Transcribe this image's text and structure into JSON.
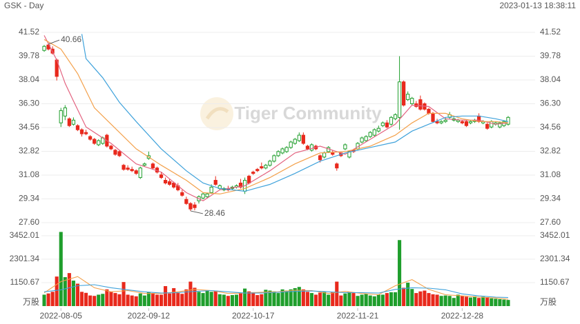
{
  "header": {
    "symbol": "GSK - Day",
    "timestamp": "2023-01-13 18:38:11"
  },
  "watermark": "Tiger Community",
  "chart_data": {
    "type": "candlestick",
    "up_color": "#1f9e2c",
    "down_color": "#e8291c",
    "ohlc": [
      [
        40.2,
        40.6,
        40.1,
        40.5
      ],
      [
        40.6,
        40.66,
        40.2,
        40.3
      ],
      [
        40.3,
        40.5,
        39.9,
        40.0
      ],
      [
        39.5,
        39.6,
        38.0,
        38.3
      ],
      [
        34.9,
        36.0,
        34.6,
        35.8
      ],
      [
        35.4,
        36.2,
        35.1,
        36.0
      ],
      [
        35.2,
        35.3,
        34.6,
        34.7
      ],
      [
        34.8,
        35.3,
        34.7,
        35.1
      ],
      [
        34.7,
        34.8,
        34.3,
        34.4
      ],
      [
        34.4,
        34.5,
        33.9,
        34.1
      ],
      [
        34.2,
        34.4,
        34.0,
        34.1
      ],
      [
        33.9,
        34.0,
        33.6,
        33.7
      ],
      [
        33.7,
        33.8,
        33.3,
        33.4
      ],
      [
        33.3,
        33.7,
        33.2,
        33.6
      ],
      [
        33.4,
        33.9,
        33.3,
        33.8
      ],
      [
        34.0,
        34.1,
        33.1,
        33.2
      ],
      [
        33.2,
        33.3,
        32.9,
        33.0
      ],
      [
        32.9,
        33.0,
        32.5,
        32.6
      ],
      [
        32.8,
        32.9,
        32.4,
        32.5
      ],
      [
        31.8,
        31.9,
        31.4,
        31.5
      ],
      [
        31.6,
        31.8,
        31.4,
        31.5
      ],
      [
        31.5,
        31.7,
        31.3,
        31.4
      ],
      [
        31.4,
        31.5,
        31.1,
        31.2
      ],
      [
        30.9,
        31.7,
        30.8,
        31.6
      ],
      [
        31.8,
        32.0,
        31.7,
        31.9
      ],
      [
        32.3,
        32.8,
        32.2,
        32.5
      ],
      [
        31.9,
        32.0,
        31.5,
        31.6
      ],
      [
        31.6,
        31.7,
        31.2,
        31.3
      ],
      [
        31.1,
        31.3,
        30.8,
        30.9
      ],
      [
        30.7,
        30.9,
        30.4,
        30.5
      ],
      [
        30.6,
        30.8,
        30.3,
        30.4
      ],
      [
        30.5,
        30.6,
        30.1,
        30.2
      ],
      [
        30.3,
        30.5,
        29.9,
        30.0
      ],
      [
        29.8,
        30.0,
        29.5,
        29.6
      ],
      [
        29.3,
        29.5,
        28.9,
        29.0
      ],
      [
        29.0,
        29.1,
        28.46,
        28.6
      ],
      [
        28.9,
        29.1,
        28.5,
        28.7
      ],
      [
        29.2,
        29.6,
        29.0,
        29.5
      ],
      [
        29.4,
        29.8,
        29.3,
        29.7
      ],
      [
        29.5,
        29.8,
        29.4,
        29.7
      ],
      [
        29.8,
        30.4,
        29.7,
        30.2
      ],
      [
        30.7,
        31.0,
        30.3,
        30.4
      ],
      [
        30.1,
        30.4,
        30.0,
        30.3
      ],
      [
        30.0,
        30.2,
        29.9,
        30.1
      ],
      [
        30.1,
        30.3,
        29.9,
        30.0
      ],
      [
        30.1,
        30.3,
        30.0,
        30.2
      ],
      [
        30.2,
        30.4,
        30.1,
        30.3
      ],
      [
        30.5,
        30.8,
        30.1,
        30.2
      ],
      [
        29.9,
        30.9,
        29.7,
        30.7
      ],
      [
        31.0,
        31.1,
        30.4,
        30.5
      ],
      [
        31.3,
        31.4,
        31.1,
        31.2
      ],
      [
        31.5,
        31.6,
        31.3,
        31.4
      ],
      [
        31.7,
        32.0,
        31.5,
        31.6
      ],
      [
        31.6,
        31.9,
        31.5,
        31.8
      ],
      [
        31.8,
        32.2,
        31.7,
        32.1
      ],
      [
        32.1,
        32.6,
        32.0,
        32.5
      ],
      [
        32.5,
        32.9,
        32.4,
        32.8
      ],
      [
        32.7,
        33.1,
        32.6,
        33.0
      ],
      [
        32.8,
        33.2,
        32.7,
        33.1
      ],
      [
        33.1,
        33.6,
        33.0,
        33.5
      ],
      [
        33.4,
        33.8,
        33.3,
        33.7
      ],
      [
        33.6,
        34.2,
        33.5,
        34.0
      ],
      [
        34.0,
        34.2,
        33.3,
        33.4
      ],
      [
        33.2,
        33.3,
        32.9,
        33.0
      ],
      [
        32.9,
        33.4,
        32.8,
        33.3
      ],
      [
        33.2,
        33.3,
        32.9,
        33.0
      ],
      [
        32.5,
        32.6,
        32.0,
        32.2
      ],
      [
        32.4,
        32.8,
        32.3,
        32.7
      ],
      [
        32.8,
        33.2,
        32.7,
        33.1
      ],
      [
        32.7,
        32.9,
        32.5,
        32.6
      ],
      [
        31.9,
        32.0,
        31.4,
        31.6
      ],
      [
        32.7,
        32.8,
        32.4,
        32.5
      ],
      [
        33.0,
        33.4,
        32.9,
        33.3
      ],
      [
        32.4,
        32.9,
        32.3,
        32.8
      ],
      [
        32.9,
        33.0,
        32.7,
        32.8
      ],
      [
        33.0,
        33.5,
        32.9,
        33.4
      ],
      [
        33.5,
        33.9,
        33.4,
        33.8
      ],
      [
        33.6,
        34.0,
        33.5,
        33.9
      ],
      [
        33.9,
        34.3,
        33.8,
        34.2
      ],
      [
        34.0,
        34.5,
        33.9,
        34.4
      ],
      [
        34.3,
        34.7,
        34.2,
        34.5
      ],
      [
        34.7,
        35.0,
        34.6,
        34.9
      ],
      [
        34.9,
        35.1,
        34.5,
        34.6
      ],
      [
        34.8,
        35.4,
        34.7,
        35.3
      ],
      [
        35.2,
        35.6,
        35.1,
        35.5
      ],
      [
        35.3,
        39.78,
        34.4,
        37.9
      ],
      [
        37.9,
        38.0,
        36.1,
        36.2
      ],
      [
        36.6,
        37.2,
        36.5,
        37.0
      ],
      [
        36.3,
        36.8,
        36.2,
        36.7
      ],
      [
        36.3,
        36.5,
        36.0,
        36.1
      ],
      [
        36.6,
        36.9,
        35.8,
        35.9
      ],
      [
        36.3,
        36.4,
        35.8,
        35.9
      ],
      [
        35.9,
        36.0,
        35.5,
        35.6
      ],
      [
        35.6,
        35.7,
        34.9,
        35.0
      ],
      [
        35.0,
        35.2,
        34.8,
        34.9
      ],
      [
        34.9,
        35.1,
        34.8,
        35.0
      ],
      [
        35.0,
        35.3,
        34.9,
        35.1
      ],
      [
        35.3,
        35.7,
        35.2,
        35.5
      ],
      [
        35.1,
        35.3,
        35.0,
        35.2
      ],
      [
        35.0,
        35.2,
        34.9,
        35.1
      ],
      [
        35.0,
        35.1,
        34.8,
        34.9
      ],
      [
        35.0,
        35.1,
        34.6,
        34.7
      ],
      [
        34.9,
        35.1,
        34.8,
        35.0
      ],
      [
        35.0,
        35.2,
        34.9,
        35.1
      ],
      [
        35.4,
        35.6,
        34.9,
        35.0
      ],
      [
        34.9,
        35.1,
        34.8,
        35.0
      ],
      [
        34.8,
        34.9,
        34.4,
        34.5
      ],
      [
        34.6,
        35.1,
        34.5,
        35.0
      ],
      [
        34.8,
        35.0,
        34.7,
        34.9
      ],
      [
        34.6,
        35.0,
        34.5,
        34.9
      ],
      [
        34.7,
        35.1,
        34.6,
        35.0
      ],
      [
        34.8,
        35.4,
        34.7,
        35.3
      ]
    ],
    "ylim": [
      27.6,
      41.52
    ],
    "yticks": [
      41.52,
      39.78,
      38.04,
      {
        "value": 36.3,
        "label": "36.30"
      },
      34.56,
      32.82,
      31.08,
      29.34,
      {
        "value": 27.6,
        "label": "27.60"
      }
    ],
    "grid": true,
    "xticks": [
      {
        "value": 4,
        "label": "2022-08-05"
      },
      {
        "value": 25,
        "label": "2022-09-12"
      },
      {
        "value": 50,
        "label": "2022-10-17"
      },
      {
        "value": 75,
        "label": "2022-11-21"
      },
      {
        "value": 100,
        "label": "2022-12-28"
      }
    ],
    "annotations": {
      "high": 40.66,
      "low": 28.46
    },
    "ma": [
      {
        "color": "#e3627f",
        "x": [
          0,
          3,
          5,
          7,
          10,
          16,
          22,
          28,
          34,
          38,
          42,
          48,
          54,
          60,
          66,
          72,
          78,
          84,
          88,
          92,
          96,
          100,
          104,
          108,
          111
        ],
        "values": [
          41.3,
          39.5,
          37.8,
          36.5,
          34.6,
          33.4,
          31.9,
          31.3,
          29.8,
          29.2,
          30.0,
          30.3,
          31.4,
          32.7,
          33.2,
          32.6,
          33.7,
          34.8,
          36.2,
          36.1,
          35.2,
          35.1,
          35.1,
          34.8,
          34.9
        ]
      },
      {
        "color": "#f3a04a",
        "x": [
          0,
          4,
          8,
          12,
          16,
          22,
          28,
          34,
          38,
          42,
          48,
          54,
          60,
          66,
          72,
          78,
          84,
          88,
          92,
          96,
          100,
          104,
          108,
          111
        ],
        "values": [
          41.0,
          40.3,
          38.5,
          36.0,
          34.8,
          33.0,
          31.8,
          30.7,
          29.8,
          29.7,
          30.1,
          30.9,
          31.9,
          32.7,
          32.8,
          33.2,
          34.0,
          34.9,
          35.6,
          35.6,
          35.2,
          35.0,
          35.0,
          34.9
        ]
      },
      {
        "color": "#3fa2db",
        "x": [
          9,
          10,
          14,
          18,
          22,
          28,
          34,
          38,
          42,
          48,
          54,
          60,
          66,
          72,
          78,
          84,
          88,
          92,
          96,
          100,
          104,
          108,
          111
        ],
        "values": [
          41.4,
          39.6,
          38.2,
          36.4,
          35.0,
          33.0,
          31.4,
          30.5,
          30.1,
          29.9,
          30.4,
          31.2,
          32.1,
          32.7,
          33.1,
          33.5,
          34.3,
          34.8,
          35.3,
          35.4,
          35.4,
          35.2,
          35.0
        ]
      }
    ],
    "volume": {
      "unit": "万股",
      "ylim": [
        0,
        3700
      ],
      "yticks": [
        3452.01,
        2301.34,
        1150.67
      ],
      "values": [
        560,
        620,
        700,
        1450,
        3640,
        1420,
        1620,
        1250,
        1100,
        700,
        650,
        520,
        500,
        560,
        600,
        820,
        700,
        640,
        580,
        1180,
        560,
        520,
        480,
        620,
        520,
        680,
        640,
        560,
        560,
        980,
        620,
        880,
        640,
        600,
        820,
        1200,
        900,
        700,
        640,
        760,
        700,
        760,
        580,
        560,
        500,
        540,
        560,
        640,
        860,
        720,
        680,
        540,
        580,
        800,
        760,
        720,
        640,
        820,
        760,
        820,
        880,
        940,
        820,
        700,
        640,
        560,
        660,
        700,
        560,
        680,
        1200,
        520,
        620,
        700,
        640,
        500,
        560,
        600,
        520,
        480,
        560,
        560,
        640,
        680,
        680,
        3240,
        900,
        1150,
        840,
        640,
        720,
        760,
        640,
        580,
        560,
        500,
        520,
        500,
        400,
        560,
        500,
        460,
        420,
        480,
        400,
        460,
        440,
        380,
        360,
        340,
        320,
        300
      ],
      "ma": [
        {
          "color": "#f3a04a",
          "x": [
            0,
            4,
            8,
            12,
            16,
            20,
            24,
            28,
            32,
            36,
            40,
            44,
            48,
            52,
            56,
            60,
            64,
            68,
            72,
            76,
            80,
            84,
            88,
            92,
            96,
            100,
            104,
            108,
            111
          ],
          "values": [
            650,
            1200,
            1450,
            900,
            700,
            760,
            620,
            620,
            700,
            820,
            760,
            620,
            640,
            680,
            700,
            780,
            760,
            620,
            720,
            620,
            560,
            1000,
            1300,
            820,
            560,
            500,
            440,
            400,
            340
          ]
        },
        {
          "color": "#3fa2db",
          "x": [
            0,
            4,
            8,
            12,
            16,
            20,
            24,
            28,
            32,
            36,
            40,
            44,
            48,
            52,
            56,
            60,
            64,
            68,
            72,
            76,
            80,
            84,
            88,
            92,
            96,
            100,
            104,
            108,
            111
          ],
          "values": [
            700,
            800,
            1000,
            1050,
            900,
            800,
            700,
            640,
            660,
            720,
            760,
            700,
            640,
            640,
            680,
            720,
            740,
            700,
            660,
            660,
            640,
            820,
            900,
            880,
            800,
            600,
            500,
            440,
            420
          ]
        }
      ]
    }
  }
}
